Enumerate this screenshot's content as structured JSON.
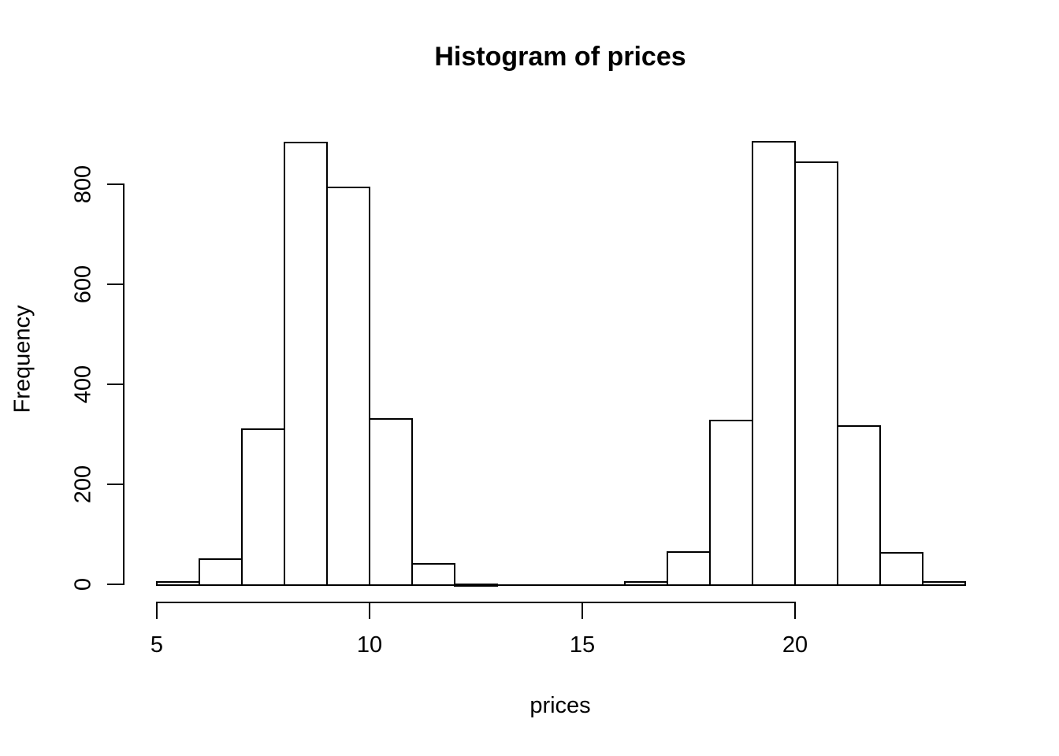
{
  "figure": {
    "background": "#ffffff"
  },
  "chart_data": {
    "type": "bar",
    "subtype": "histogram",
    "title": "Histogram of prices",
    "xlabel": "prices",
    "ylabel": "Frequency",
    "bin_edges": [
      5,
      6,
      7,
      8,
      9,
      10,
      11,
      12,
      13,
      14,
      15,
      16,
      17,
      18,
      19,
      20,
      21,
      22,
      23,
      24
    ],
    "counts": [
      6,
      52,
      312,
      885,
      795,
      332,
      43,
      2,
      0,
      0,
      0,
      7,
      66,
      329,
      887,
      845,
      318,
      65,
      7
    ],
    "x_ticks": [
      5,
      10,
      15,
      20
    ],
    "y_ticks": [
      0,
      200,
      400,
      600,
      800
    ],
    "xlim": [
      5,
      24
    ],
    "ylim": [
      0,
      900
    ],
    "grid": false,
    "legend": null,
    "bar_fill": "#ffffff",
    "bar_border": "#000000",
    "axis_color": "#000000",
    "text_color": "#000000"
  }
}
